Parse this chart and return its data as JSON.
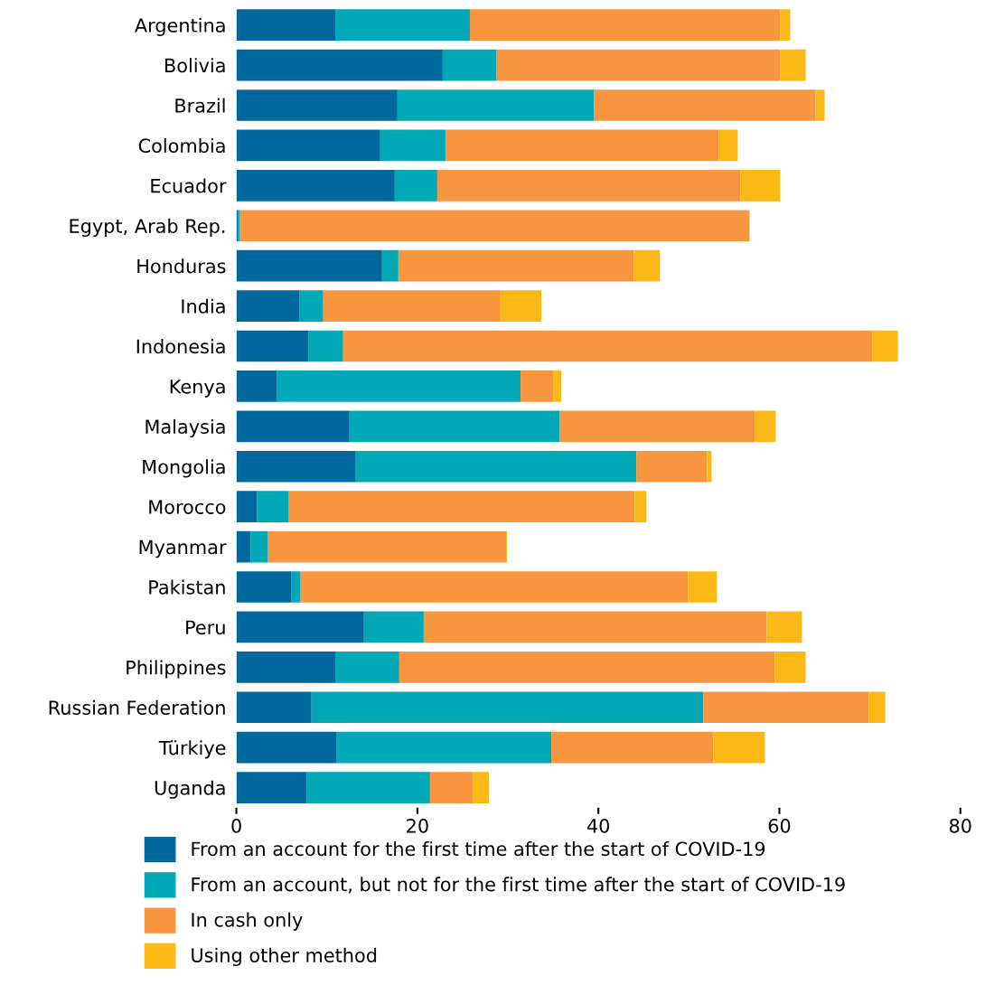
{
  "chart_data": {
    "type": "bar",
    "orientation": "horizontal",
    "stacked": true,
    "categories": [
      "Argentina",
      "Bolivia",
      "Brazil",
      "Colombia",
      "Ecuador",
      "Egypt, Arab Rep.",
      "Honduras",
      "India",
      "Indonesia",
      "Kenya",
      "Malaysia",
      "Mongolia",
      "Morocco",
      "Myanmar",
      "Pakistan",
      "Peru",
      "Philippines",
      "Russian Federation",
      "Türkiye",
      "Uganda"
    ],
    "series": [
      {
        "name": "From an account for the first time after the start of COVID-19",
        "color": "#00689d",
        "values": [
          11.0,
          22.8,
          17.8,
          15.9,
          17.5,
          0.2,
          16.1,
          7.0,
          8.0,
          4.5,
          12.5,
          13.2,
          2.3,
          1.6,
          6.1,
          14.1,
          11.0,
          8.3,
          11.1,
          7.8
        ]
      },
      {
        "name": "From an account, but not for the first time after the start of COVID-19",
        "color": "#00a9b5",
        "values": [
          14.8,
          5.9,
          21.7,
          7.2,
          4.7,
          0.2,
          1.8,
          2.6,
          3.8,
          26.9,
          23.2,
          31.0,
          3.5,
          1.9,
          1.0,
          6.6,
          7.0,
          43.3,
          23.7,
          13.6
        ]
      },
      {
        "name": "In cash only",
        "color": "#f7963f",
        "values": [
          34.3,
          31.4,
          24.5,
          30.2,
          33.5,
          56.3,
          26.0,
          19.5,
          58.5,
          3.6,
          21.6,
          7.8,
          38.2,
          26.3,
          42.8,
          37.9,
          41.5,
          18.3,
          17.9,
          4.7
        ]
      },
      {
        "name": "Using other method",
        "color": "#fbb817",
        "values": [
          1.1,
          2.8,
          1.0,
          2.1,
          4.4,
          0.0,
          2.9,
          4.6,
          2.8,
          0.9,
          2.3,
          0.5,
          1.3,
          0.1,
          3.2,
          3.9,
          3.4,
          1.8,
          5.7,
          1.8
        ]
      }
    ],
    "xlim": [
      0,
      80
    ],
    "xticks": [
      0,
      20,
      40,
      60,
      80
    ],
    "grid": false,
    "legend": "bottom"
  }
}
